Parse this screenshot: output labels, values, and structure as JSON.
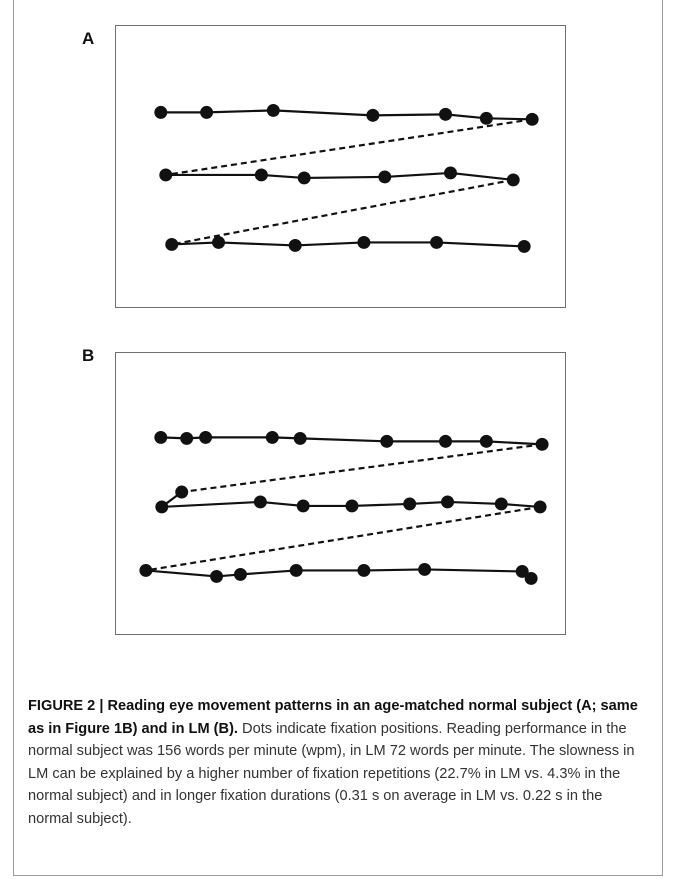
{
  "figure": {
    "panels": [
      {
        "label": "A",
        "rows": [
          {
            "fixations": [
              [
                45,
                87
              ],
              [
                91,
                87
              ],
              [
                158,
                85
              ],
              [
                258,
                90
              ],
              [
                331,
                89
              ],
              [
                372,
                93
              ],
              [
                418,
                94
              ]
            ]
          },
          {
            "fixations": [
              [
                50,
                150
              ],
              [
                146,
                150
              ],
              [
                189,
                153
              ],
              [
                270,
                152
              ],
              [
                336,
                148
              ],
              [
                399,
                155
              ]
            ]
          },
          {
            "fixations": [
              [
                56,
                220
              ],
              [
                103,
                218
              ],
              [
                180,
                221
              ],
              [
                249,
                218
              ],
              [
                322,
                218
              ],
              [
                410,
                222
              ]
            ]
          }
        ],
        "saccades": [
          {
            "from": [
              418,
              94
            ],
            "to": [
              50,
              150
            ]
          },
          {
            "from": [
              399,
              155
            ],
            "to": [
              56,
              220
            ]
          }
        ]
      },
      {
        "label": "B",
        "rows": [
          {
            "fixations": [
              [
                45,
                85
              ],
              [
                71,
                86
              ],
              [
                90,
                85
              ],
              [
                157,
                85
              ],
              [
                185,
                86
              ],
              [
                272,
                89
              ],
              [
                331,
                89
              ],
              [
                372,
                89
              ],
              [
                428,
                92
              ]
            ]
          },
          {
            "fixations": [
              [
                66,
                140
              ],
              [
                46,
                155
              ],
              [
                145,
                150
              ],
              [
                188,
                154
              ],
              [
                237,
                154
              ],
              [
                295,
                152
              ],
              [
                333,
                150
              ],
              [
                387,
                152
              ],
              [
                426,
                155
              ]
            ]
          },
          {
            "fixations": [
              [
                30,
                219
              ],
              [
                101,
                225
              ],
              [
                125,
                223
              ],
              [
                181,
                219
              ],
              [
                249,
                219
              ],
              [
                310,
                218
              ],
              [
                408,
                220
              ],
              [
                417,
                227
              ]
            ]
          }
        ],
        "saccades": [
          {
            "from": [
              428,
              92
            ],
            "to": [
              66,
              140
            ]
          },
          {
            "from": [
              426,
              155
            ],
            "to": [
              30,
              219
            ]
          }
        ]
      }
    ]
  },
  "caption": {
    "title": "FIGURE 2 | Reading eye movement patterns in an age-matched normal subject (A; same as in Figure 1B) and in LM (B).",
    "body": " Dots indicate fixation positions. Reading performance in the normal subject was 156 words per minute (wpm), in LM 72 words per minute. The slowness in LM can be explained by a higher number of fixation repetitions (22.7% in LM vs. 4.3% in the normal subject) and in longer fixation durations (0.31 s on average in LM vs. 0.22 s in the normal subject)."
  },
  "colors": {
    "ink": "#111111",
    "panel_border": "#6f6f6f",
    "caption_text": "#333333"
  }
}
